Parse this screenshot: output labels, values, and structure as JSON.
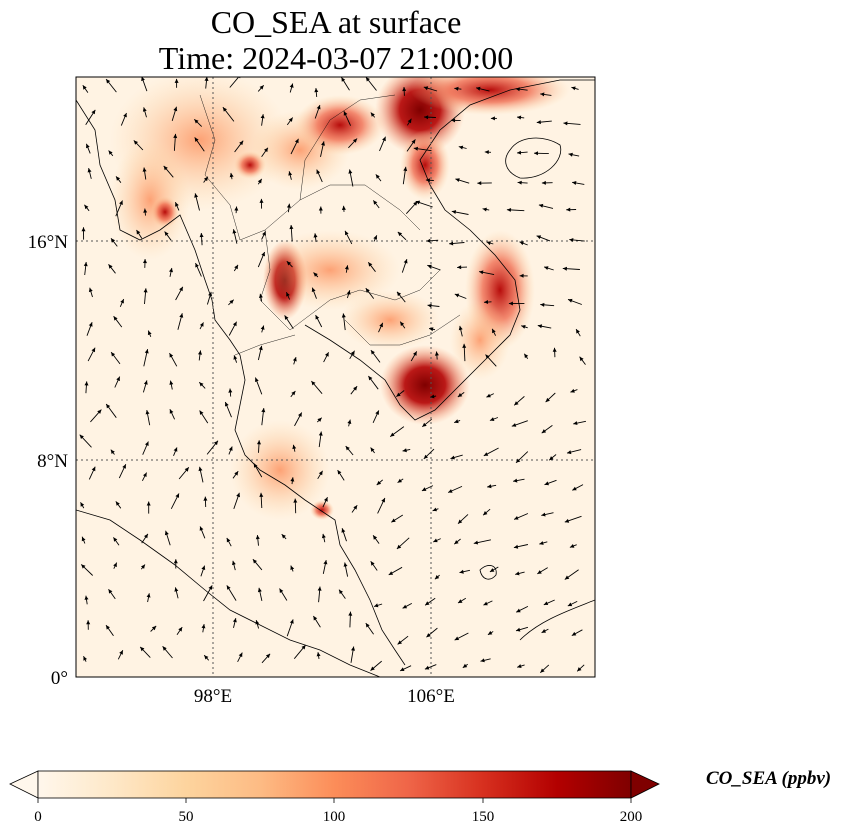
{
  "title": {
    "line1": "CO_SEA at surface",
    "line2": "Time: 2024-03-07 21:00:00"
  },
  "map": {
    "projection": "PlateCarree",
    "lon_range": [
      93,
      112
    ],
    "lat_range": [
      0,
      22
    ],
    "lat_ticks": [
      {
        "value": 16,
        "label": "16°N"
      },
      {
        "value": 8,
        "label": "8°N"
      },
      {
        "value": 0,
        "label": "0°"
      }
    ],
    "lon_ticks": [
      {
        "value": 98,
        "label": "98°E"
      },
      {
        "value": 106,
        "label": "106°E"
      }
    ],
    "gridlines": true,
    "wind_vectors": true,
    "coastlines": true,
    "borders": true
  },
  "colorbar": {
    "label": "CO_SEA (ppbv)",
    "cmap": "OrRd",
    "extend": "both",
    "min": 0,
    "max": 200,
    "ticks": [
      "0",
      "50",
      "100",
      "150",
      "200"
    ]
  },
  "colors": {
    "low": "#fff7ec",
    "mid": "#fc8d59",
    "high": "#7f0000"
  }
}
